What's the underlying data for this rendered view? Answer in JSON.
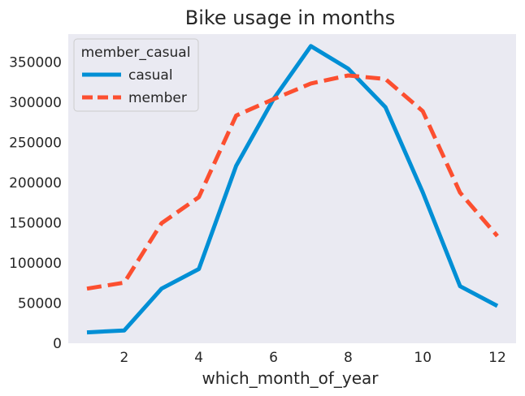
{
  "chart_data": {
    "type": "line",
    "title": "Bike usage in months",
    "xlabel": "which_month_of_year",
    "ylabel": "",
    "xlim": [
      0.5,
      12.5
    ],
    "ylim": [
      0,
      385000
    ],
    "xticks": [
      2,
      4,
      6,
      8,
      10,
      12
    ],
    "yticks": [
      0,
      50000,
      100000,
      150000,
      200000,
      250000,
      300000,
      350000
    ],
    "x": [
      1,
      2,
      3,
      4,
      5,
      6,
      7,
      8,
      9,
      10,
      11,
      12
    ],
    "grid": false,
    "legend": {
      "title": "member_casual",
      "placement": "top-left"
    },
    "series": [
      {
        "name": "casual",
        "color": "#008fd5",
        "style": "solid",
        "values": [
          13500,
          16000,
          68000,
          92500,
          221000,
          304000,
          370000,
          342000,
          294000,
          188000,
          71000,
          46500
        ]
      },
      {
        "name": "member",
        "color": "#fc4f30",
        "style": "dashed",
        "values": [
          68000,
          75500,
          149500,
          182000,
          283500,
          304000,
          323500,
          333500,
          329000,
          289000,
          187500,
          133500
        ]
      }
    ]
  }
}
